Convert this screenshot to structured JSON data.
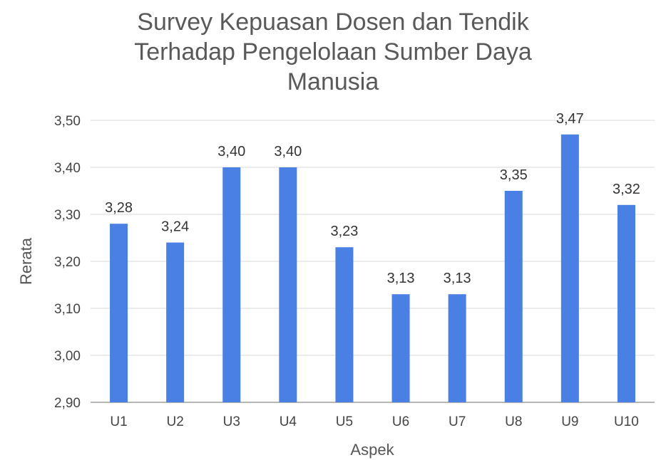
{
  "chart_data": {
    "type": "bar",
    "title_lines": [
      "Survey Kepuasan Dosen dan Tendik",
      "Terhadap Pengelolaan Sumber Daya",
      "Manusia"
    ],
    "xlabel": "Aspek",
    "ylabel": "Rerata",
    "categories": [
      "U1",
      "U2",
      "U3",
      "U4",
      "U5",
      "U6",
      "U7",
      "U8",
      "U9",
      "U10"
    ],
    "values": [
      3.28,
      3.24,
      3.4,
      3.4,
      3.23,
      3.13,
      3.13,
      3.35,
      3.47,
      3.32
    ],
    "data_labels": [
      "3,28",
      "3,24",
      "3,40",
      "3,40",
      "3,23",
      "3,13",
      "3,13",
      "3,35",
      "3,47",
      "3,32"
    ],
    "ylim": [
      2.9,
      3.5
    ],
    "yticks": [
      2.9,
      3.0,
      3.1,
      3.2,
      3.3,
      3.4,
      3.5
    ],
    "ytick_labels": [
      "2,90",
      "3,00",
      "3,10",
      "3,20",
      "3,30",
      "3,40",
      "3,50"
    ],
    "grid": true,
    "legend": "none",
    "bar_color": "#4a7fe4",
    "grid_color": "#d9d9d9"
  }
}
